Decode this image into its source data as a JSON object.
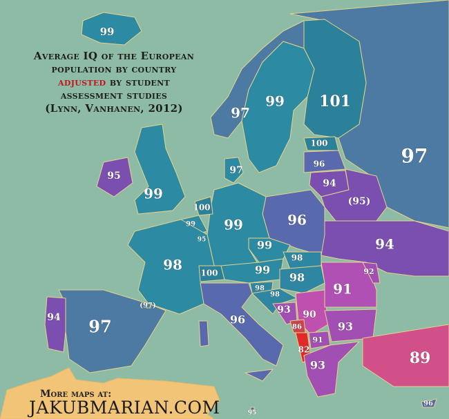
{
  "title": {
    "line1": "Average IQ of the European",
    "line2": "population by country",
    "adjusted": "adjusted",
    "line3_rest": " by student",
    "line4": "assessment studies",
    "line5": "(Lynn, Vanhanen, 2012)"
  },
  "banner": {
    "line1": "More maps at:",
    "line2": "JAKUBMARIAN.COM"
  },
  "colors": {
    "sea": "#8dbba6",
    "iq_100_101": "#2a8199",
    "iq_99": "#2c8aa3",
    "iq_98": "#2f86a2",
    "iq_97": "#4d7aa3",
    "iq_96": "#5869ad",
    "iq_94_95": "#7a4fb0",
    "iq_91_93": "#a24fb4",
    "iq_90": "#c050b0",
    "iq_89": "#d2508a",
    "iq_86": "#c9444e",
    "iq_82": "#e02a2a",
    "banner": "#f2c478",
    "title_highlight": "#c0161c"
  },
  "labels": [
    "99",
    "97",
    "99",
    "101",
    "100",
    "96",
    "94",
    "(95)",
    "97",
    "95",
    "99",
    "97",
    "100",
    "99",
    "95",
    "99",
    "96",
    "94",
    "98",
    "99",
    "98",
    "99",
    "98",
    "100",
    "98",
    "98",
    "91",
    "92",
    "93",
    "90",
    "86",
    "82",
    "91",
    "93",
    "93",
    "89",
    "96",
    "94",
    "97",
    "(97)",
    "95",
    "96"
  ]
}
